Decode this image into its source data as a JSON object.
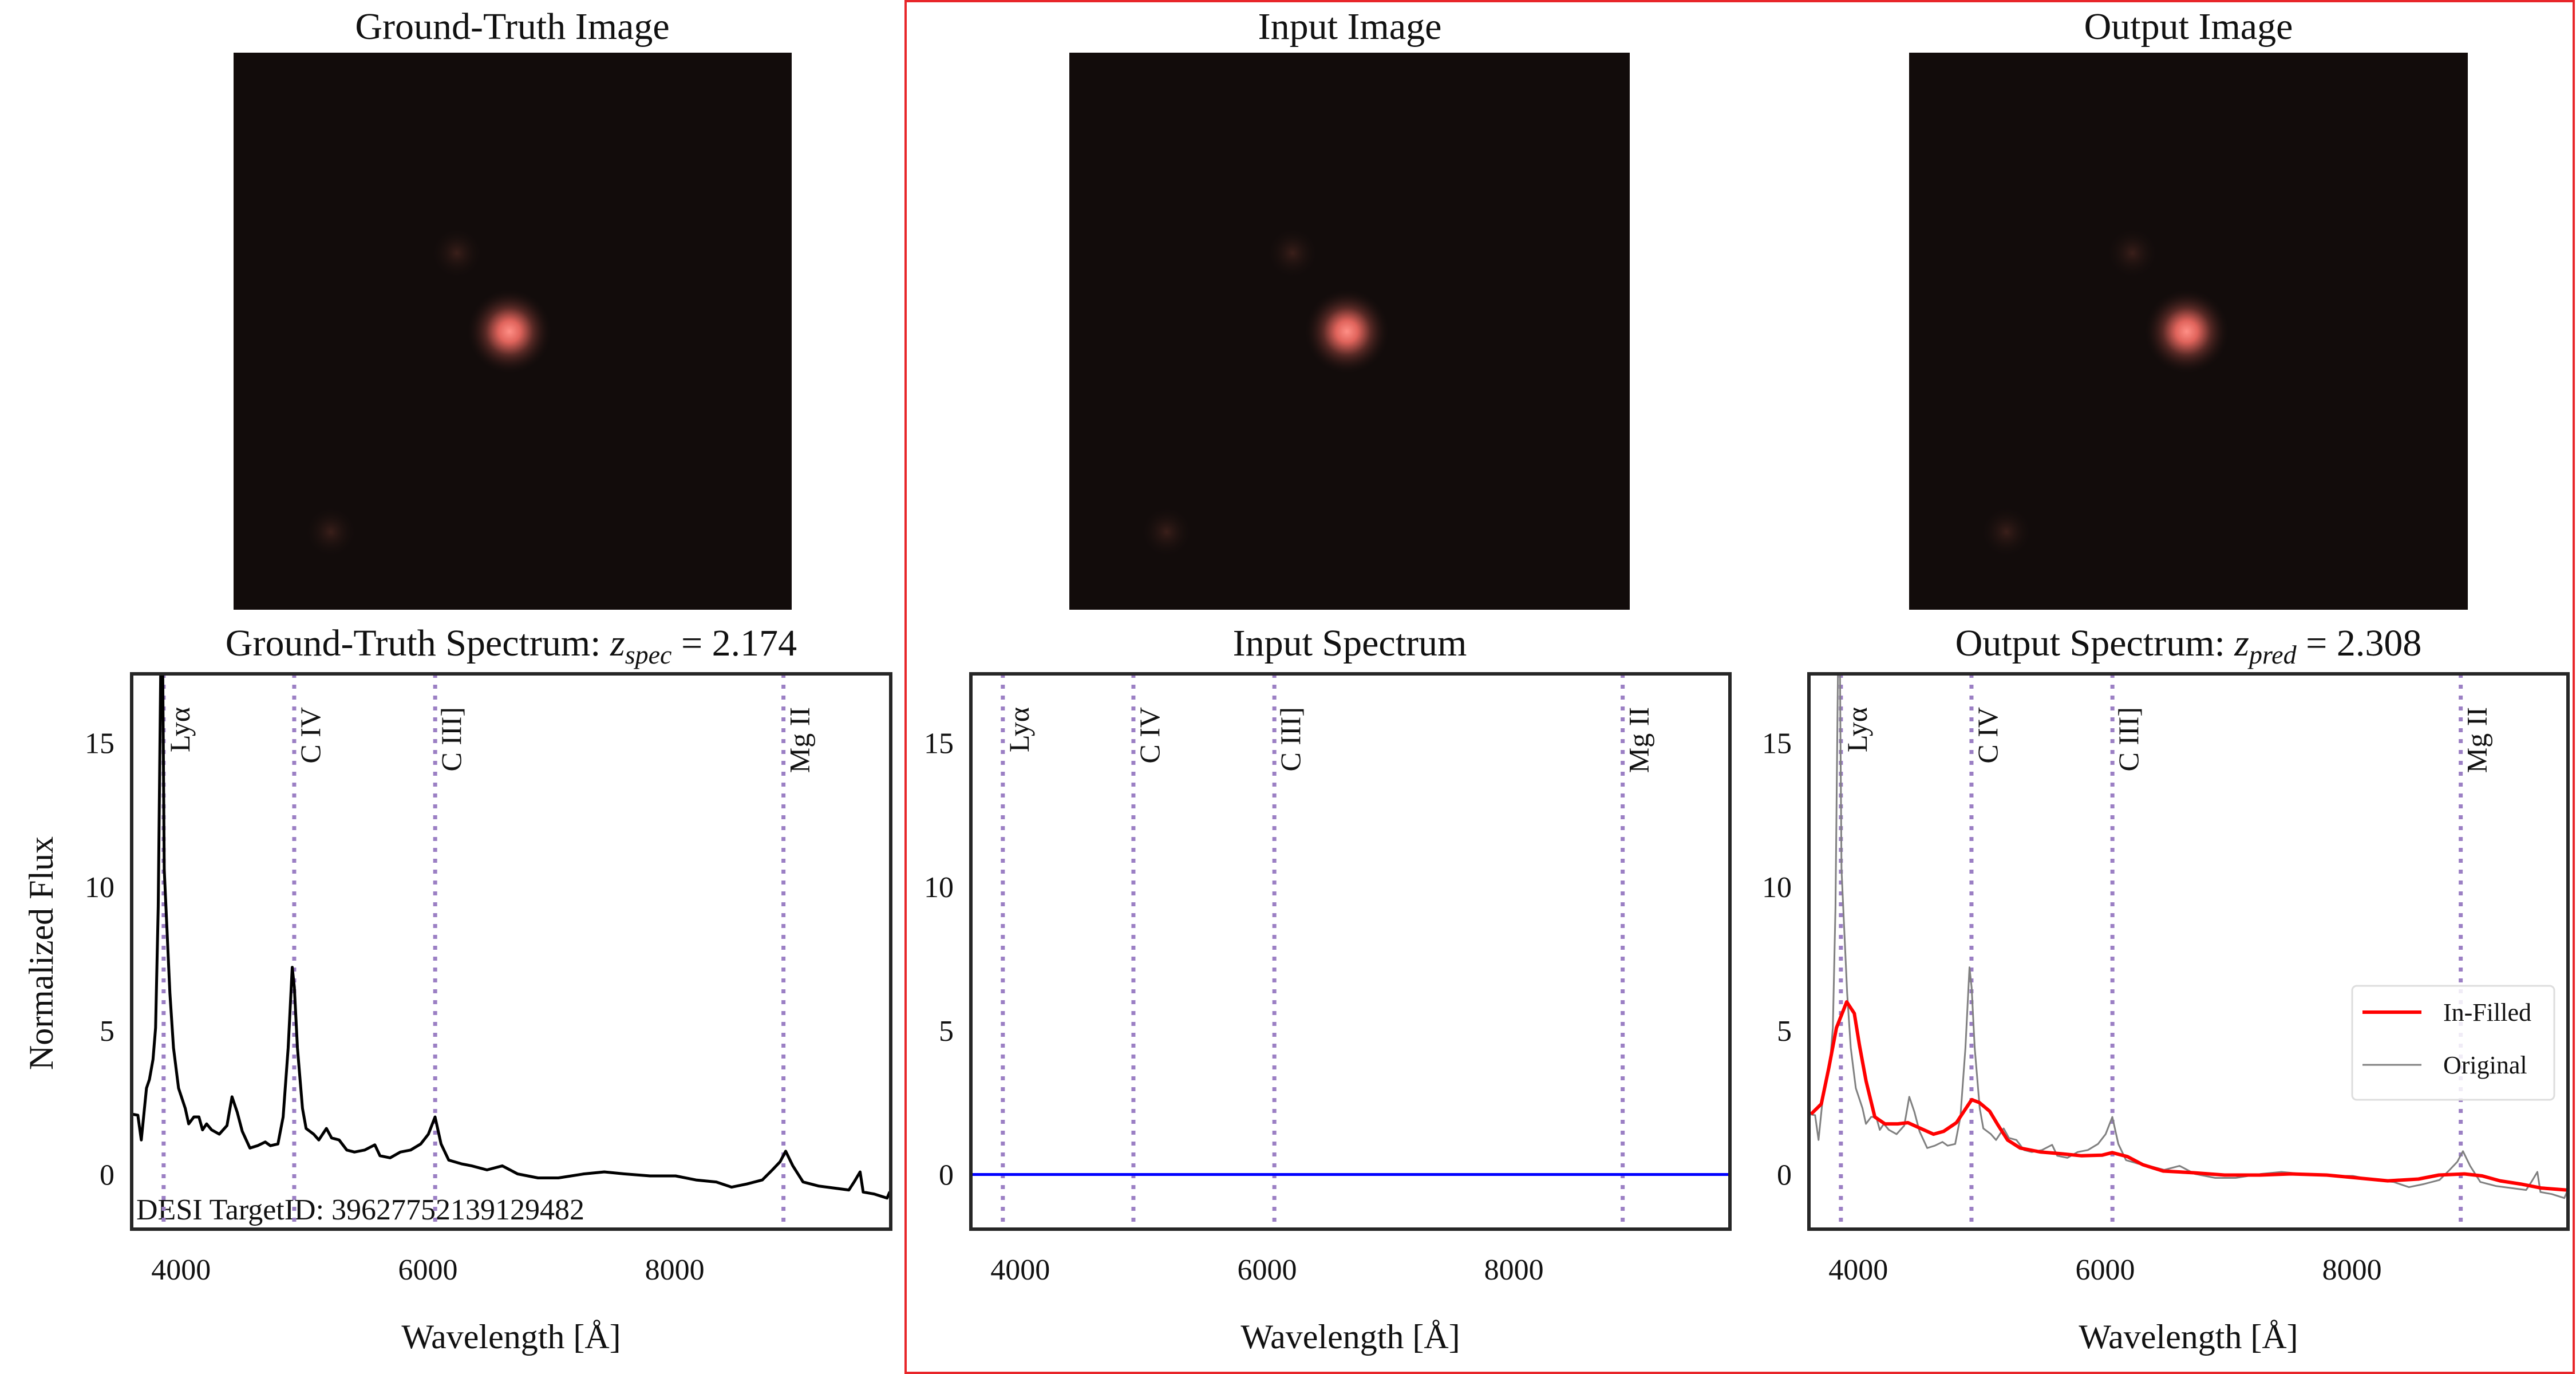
{
  "panels": {
    "gt_image_title": "Ground-Truth Image",
    "input_image_title": "Input Image",
    "output_image_title": "Output Image"
  },
  "colors": {
    "highlight_frame": "#e8262a",
    "emission_line": "#9b7fc4",
    "ground_truth": "#000000",
    "input": "#0000ff",
    "infilled": "#ff0000",
    "original": "#808080"
  },
  "chart_data": [
    {
      "type": "line",
      "title": {
        "prefix": "Ground-Truth Spectrum: ",
        "var": "z",
        "sub": "spec",
        "eq": " = 2.174"
      },
      "xlabel": "Wavelength [Å]",
      "ylabel": "Normalized Flux",
      "xlim": [
        3600,
        9750
      ],
      "ylim": [
        -1.9,
        17.4
      ],
      "xticks": [
        "4000",
        "6000",
        "8000"
      ],
      "yticks": [
        "0",
        "5",
        "10",
        "15"
      ],
      "annotation": "DESI TargetID: 39627752139129482",
      "emission_lines": [
        {
          "label": "Lyα",
          "x": 3859
        },
        {
          "label": "C IV",
          "x": 4917
        },
        {
          "label": "C III]",
          "x": 6059
        },
        {
          "label": "Mg II",
          "x": 8881
        }
      ],
      "series": [
        {
          "x": [
            3600,
            3650,
            3678,
            3720,
            3744,
            3773,
            3794,
            3815,
            3835,
            3852,
            3864,
            3910,
            3939,
            3980,
            4034,
            4062,
            4104,
            4145,
            4174,
            4207,
            4248,
            4310,
            4372,
            4413,
            4455,
            4496,
            4558,
            4620,
            4682,
            4724,
            4785,
            4827,
            4868,
            4901,
            4918,
            4943,
            4984,
            5013,
            5075,
            5116,
            5178,
            5220,
            5281,
            5343,
            5405,
            5488,
            5570,
            5612,
            5694,
            5777,
            5860,
            5942,
            6004,
            6058,
            6107,
            6169,
            6272,
            6355,
            6479,
            6603,
            6727,
            6892,
            7057,
            7264,
            7429,
            7594,
            7800,
            8007,
            8172,
            8337,
            8461,
            8585,
            8709,
            8791,
            8853,
            8899,
            8957,
            9040,
            9164,
            9288,
            9411,
            9453,
            9502,
            9527,
            9618,
            9721,
            9742
          ],
          "y": [
            2.1,
            2.06,
            1.2,
            3.0,
            3.3,
            4.0,
            5.1,
            9.3,
            17.4,
            17.4,
            10.6,
            6.3,
            4.4,
            3.0,
            2.3,
            1.76,
            2.0,
            2.0,
            1.55,
            1.76,
            1.55,
            1.4,
            1.7,
            2.7,
            2.17,
            1.5,
            0.92,
            1.0,
            1.13,
            1.0,
            1.06,
            2.0,
            4.4,
            7.2,
            6.5,
            4.4,
            2.3,
            1.6,
            1.4,
            1.2,
            1.6,
            1.27,
            1.2,
            0.85,
            0.78,
            0.85,
            1.03,
            0.65,
            0.58,
            0.78,
            0.85,
            1.06,
            1.4,
            2.0,
            1.06,
            0.5,
            0.37,
            0.3,
            0.16,
            0.3,
            0.02,
            -0.12,
            -0.12,
            0.02,
            0.09,
            0.02,
            -0.05,
            -0.05,
            -0.19,
            -0.26,
            -0.44,
            -0.33,
            -0.19,
            0.16,
            0.44,
            0.81,
            0.3,
            -0.26,
            -0.4,
            -0.47,
            -0.54,
            -0.26,
            0.09,
            -0.61,
            -0.68,
            -0.82,
            -0.6
          ]
        }
      ]
    },
    {
      "type": "line",
      "title": {
        "prefix": "Input Spectrum"
      },
      "xlabel": "Wavelength [Å]",
      "xlim": [
        3600,
        9750
      ],
      "ylim": [
        -1.9,
        17.4
      ],
      "xticks": [
        "4000",
        "6000",
        "8000"
      ],
      "yticks": [
        "0",
        "5",
        "10",
        "15"
      ],
      "emission_lines": [
        {
          "label": "Lyα",
          "x": 3859
        },
        {
          "label": "C IV",
          "x": 4917
        },
        {
          "label": "C III]",
          "x": 6059
        },
        {
          "label": "Mg II",
          "x": 8881
        }
      ],
      "series": [
        {
          "x": [
            3600,
            9750
          ],
          "y": [
            0,
            0
          ]
        }
      ]
    },
    {
      "type": "line",
      "title": {
        "prefix": "Output Spectrum: ",
        "var": "z",
        "sub": "pred",
        "eq": " = 2.308"
      },
      "xlabel": "Wavelength [Å]",
      "xlim": [
        3600,
        9750
      ],
      "ylim": [
        -1.9,
        17.4
      ],
      "xticks": [
        "4000",
        "6000",
        "8000"
      ],
      "yticks": [
        "0",
        "5",
        "10",
        "15"
      ],
      "legend_position": "center-right",
      "emission_lines": [
        {
          "label": "Lyα",
          "x": 3859
        },
        {
          "label": "C IV",
          "x": 4917
        },
        {
          "label": "C III]",
          "x": 6059
        },
        {
          "label": "Mg II",
          "x": 8881
        }
      ],
      "series": [
        {
          "name": "Original",
          "x": [
            3600,
            3650,
            3678,
            3720,
            3744,
            3773,
            3794,
            3815,
            3835,
            3852,
            3864,
            3910,
            3939,
            3980,
            4034,
            4062,
            4104,
            4145,
            4174,
            4207,
            4248,
            4310,
            4372,
            4413,
            4455,
            4496,
            4558,
            4620,
            4682,
            4724,
            4785,
            4827,
            4868,
            4901,
            4918,
            4943,
            4984,
            5013,
            5075,
            5116,
            5178,
            5220,
            5281,
            5343,
            5405,
            5488,
            5570,
            5612,
            5694,
            5777,
            5860,
            5942,
            6004,
            6058,
            6107,
            6169,
            6272,
            6355,
            6479,
            6603,
            6727,
            6892,
            7057,
            7264,
            7429,
            7594,
            7800,
            8007,
            8172,
            8337,
            8461,
            8585,
            8709,
            8791,
            8853,
            8899,
            8957,
            9040,
            9164,
            9288,
            9411,
            9453,
            9502,
            9527,
            9618,
            9721,
            9742
          ],
          "y": [
            2.1,
            2.06,
            1.2,
            3.0,
            3.3,
            4.0,
            5.1,
            9.3,
            17.4,
            17.4,
            10.6,
            6.3,
            4.4,
            3.0,
            2.3,
            1.76,
            2.0,
            2.0,
            1.55,
            1.76,
            1.55,
            1.4,
            1.7,
            2.7,
            2.17,
            1.5,
            0.92,
            1.0,
            1.13,
            1.0,
            1.06,
            2.0,
            4.4,
            7.2,
            6.5,
            4.4,
            2.3,
            1.6,
            1.4,
            1.2,
            1.6,
            1.27,
            1.2,
            0.85,
            0.78,
            0.85,
            1.03,
            0.65,
            0.58,
            0.78,
            0.85,
            1.06,
            1.4,
            2.0,
            1.06,
            0.5,
            0.37,
            0.3,
            0.16,
            0.3,
            0.02,
            -0.12,
            -0.12,
            0.02,
            0.09,
            0.02,
            -0.05,
            -0.05,
            -0.19,
            -0.26,
            -0.44,
            -0.33,
            -0.19,
            0.16,
            0.44,
            0.81,
            0.3,
            -0.26,
            -0.4,
            -0.47,
            -0.54,
            -0.26,
            0.09,
            -0.61,
            -0.68,
            -0.82,
            -0.6
          ]
        },
        {
          "name": "In-Filled",
          "x": [
            3617,
            3700,
            3761,
            3823,
            3906,
            3968,
            4009,
            4063,
            4134,
            4216,
            4320,
            4402,
            4506,
            4609,
            4692,
            4795,
            4857,
            4919,
            4981,
            5064,
            5126,
            5209,
            5312,
            5478,
            5643,
            5809,
            5974,
            6057,
            6181,
            6305,
            6470,
            6718,
            6967,
            7256,
            7504,
            7794,
            8042,
            8290,
            8538,
            8704,
            8911,
            9055,
            9200,
            9365,
            9531,
            9738
          ],
          "y": [
            2.1,
            2.45,
            3.7,
            5.1,
            6.0,
            5.6,
            4.5,
            3.25,
            2.0,
            1.76,
            1.76,
            1.8,
            1.6,
            1.4,
            1.5,
            1.8,
            2.2,
            2.6,
            2.5,
            2.2,
            1.76,
            1.2,
            0.92,
            0.78,
            0.72,
            0.65,
            0.67,
            0.76,
            0.62,
            0.34,
            0.12,
            0.06,
            -0.02,
            -0.02,
            0.02,
            -0.02,
            -0.12,
            -0.22,
            -0.16,
            -0.02,
            0.02,
            -0.05,
            -0.22,
            -0.33,
            -0.47,
            -0.54
          ]
        }
      ]
    }
  ]
}
